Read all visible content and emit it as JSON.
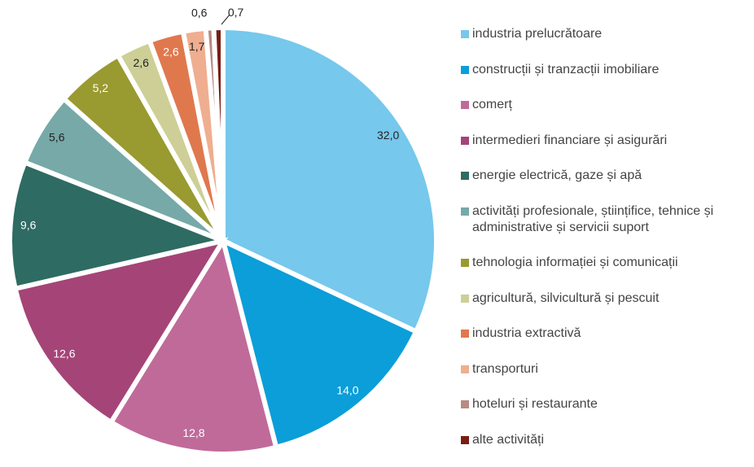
{
  "chart_data": {
    "type": "pie",
    "categories": [
      "industria prelucrătoare",
      "construcții și tranzacții imobiliare",
      "comerț",
      "intermedieri financiare și asigurări",
      "energie electrică, gaze și apă",
      "activități profesionale, științifice, tehnice și administrative și servicii suport",
      "tehnologia informației și comunicații",
      "agricultură, silvicultură și pescuit",
      "industria extractivă",
      "transporturi",
      "hoteluri și restaurante",
      "alte activități"
    ],
    "values": [
      32.0,
      14.0,
      12.8,
      12.6,
      9.6,
      5.6,
      5.2,
      2.6,
      2.6,
      1.7,
      0.6,
      0.7
    ],
    "value_labels": [
      "32,0",
      "14,0",
      "12,8",
      "12,6",
      "9,6",
      "5,6",
      "5,2",
      "2,6",
      "2,6",
      "1,7",
      "0,6",
      "0,7"
    ],
    "colors": [
      "#76c8ec",
      "#0b9ed9",
      "#c06a9a",
      "#a54477",
      "#2e6b63",
      "#76a9a8",
      "#999a30",
      "#cdcf96",
      "#e0784e",
      "#efae90",
      "#b88a82",
      "#7a1d14"
    ],
    "legend": "right"
  }
}
